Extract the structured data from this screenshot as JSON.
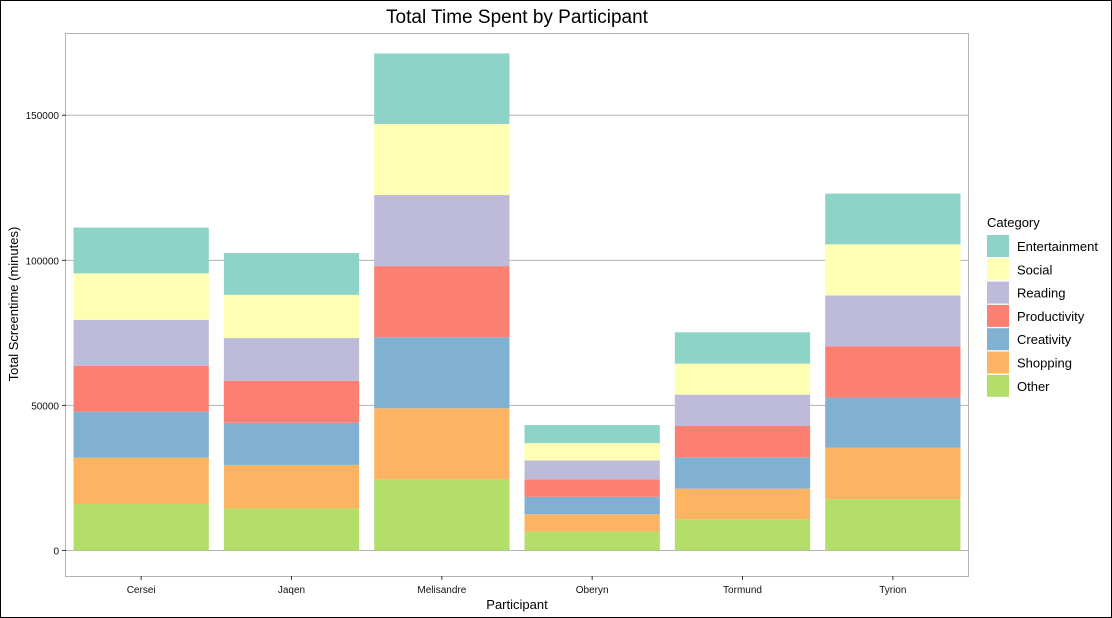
{
  "chart_data": {
    "type": "bar",
    "stacked": true,
    "title": "Total Time Spent by Participant",
    "xlabel": "Participant",
    "ylabel": "Total Screentime (minutes)",
    "ylim": [
      -8800,
      178000
    ],
    "yticks": [
      0,
      50000,
      100000,
      150000
    ],
    "grid": true,
    "legend_position": "right",
    "legend_title": "Category",
    "categories": [
      "Cersei",
      "Jaqen",
      "Melisandre",
      "Oberyn",
      "Tormund",
      "Tyrion"
    ],
    "series": [
      {
        "name": "Other",
        "color": "#b3de69",
        "values": [
          16000,
          14500,
          24500,
          6500,
          10800,
          17700
        ]
      },
      {
        "name": "Shopping",
        "color": "#fdb462",
        "values": [
          16000,
          15000,
          24500,
          6000,
          10500,
          17700
        ]
      },
      {
        "name": "Creativity",
        "color": "#80b1d3",
        "values": [
          15800,
          14500,
          24500,
          6000,
          10800,
          17300
        ]
      },
      {
        "name": "Productivity",
        "color": "#fb8072",
        "values": [
          15800,
          14500,
          24500,
          6000,
          10800,
          17700
        ]
      },
      {
        "name": "Reading",
        "color": "#bebada",
        "values": [
          15900,
          14700,
          24500,
          6500,
          10800,
          17500
        ]
      },
      {
        "name": "Social",
        "color": "#ffffb3",
        "values": [
          16000,
          14900,
          24500,
          6000,
          10700,
          17600
        ]
      },
      {
        "name": "Entertainment",
        "color": "#8dd3c7",
        "values": [
          15800,
          14400,
          24300,
          6200,
          10800,
          17500
        ]
      }
    ],
    "legend_order": [
      "Entertainment",
      "Social",
      "Reading",
      "Productivity",
      "Creativity",
      "Shopping",
      "Other"
    ]
  }
}
